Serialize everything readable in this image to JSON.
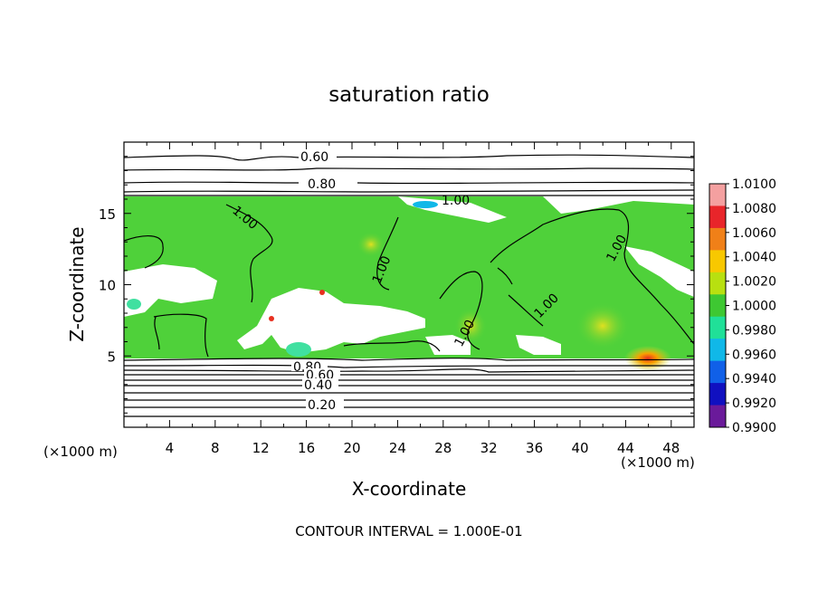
{
  "chart_data": {
    "type": "heatmap",
    "title": "saturation ratio",
    "xlabel": "X-coordinate",
    "ylabel": "Z-coordinate",
    "x_unit": "(×1000 m)",
    "y_unit": "(×1000 m)",
    "xlim": [
      0,
      50
    ],
    "ylim": [
      0,
      20
    ],
    "x_ticks": [
      "4",
      "8",
      "12",
      "16",
      "20",
      "24",
      "28",
      "32",
      "36",
      "40",
      "44",
      "48"
    ],
    "y_ticks": [
      "5",
      "10",
      "15"
    ],
    "contour_interval_text": "CONTOUR INTERVAL = 1.000E-01",
    "contour_labels": [
      "0.60",
      "0.80",
      "1.00",
      "1.00",
      "1.00",
      "1.00",
      "1.00",
      "1.00",
      "0.80",
      "0.60",
      "0.40",
      "0.20"
    ],
    "colorbar": {
      "labels": [
        "1.0100",
        "1.0080",
        "1.0060",
        "1.0040",
        "1.0020",
        "1.0000",
        "0.9980",
        "0.9960",
        "0.9940",
        "0.9920",
        "0.9900"
      ],
      "colors": [
        "#f4a0a0",
        "#e8252a",
        "#f08018",
        "#f8c800",
        "#b8e010",
        "#3ec832",
        "#20e098",
        "#10b8e8",
        "#1060e8",
        "#1010c0",
        "#6a1a9a"
      ]
    },
    "field_colors": {
      "base": "#4fd13a",
      "unsaturated": "#ffffff",
      "warm": "#c8e030",
      "cool": "#40e0a0",
      "hot": "#e83020"
    }
  }
}
